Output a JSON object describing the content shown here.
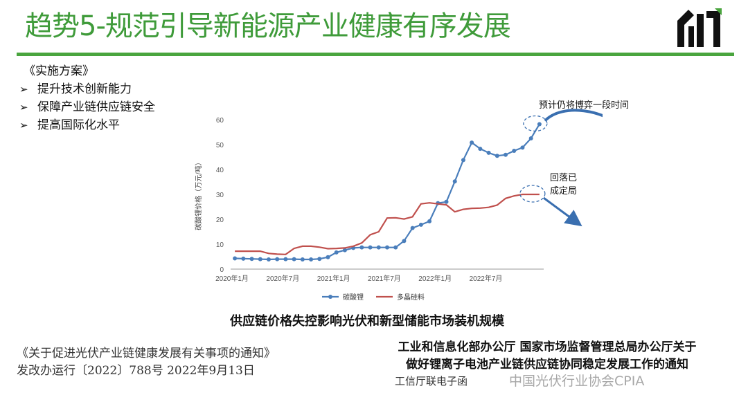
{
  "title": "趋势5-规范引导新能源产业健康有序发展",
  "plan": {
    "heading": "《实施方案》",
    "items": [
      "提升技术创新能力",
      "保障产业链供应链安全",
      "提高国际化水平"
    ]
  },
  "chart_data": {
    "type": "line",
    "ylabel": "碳酸锂价格（万元/吨）",
    "ylim": [
      0,
      60
    ],
    "yticks": [
      0,
      10,
      20,
      30,
      40,
      50,
      60
    ],
    "xticks": [
      "2020年1月",
      "2020年7月",
      "2021年1月",
      "2021年7月",
      "2022年1月",
      "2022年7月"
    ],
    "grid": false,
    "legend": "bottom",
    "series": [
      {
        "name": "碳酸锂",
        "color": "#4a7ebb",
        "marker": "circle",
        "values": [
          4.3,
          4.2,
          4.1,
          4.0,
          3.9,
          4.0,
          4.0,
          4.0,
          3.9,
          3.9,
          4.1,
          4.8,
          6.7,
          7.6,
          8.5,
          8.7,
          8.7,
          8.7,
          8.7,
          8.7,
          11.3,
          16.5,
          17.8,
          19.2,
          26.5,
          27.0,
          35.2,
          43.8,
          50.8,
          48.3,
          46.7,
          45.5,
          45.9,
          47.5,
          48.8,
          52.5,
          58.2
        ]
      },
      {
        "name": "多晶硅料",
        "color": "#c0504d",
        "marker": "none",
        "values": [
          7.2,
          7.2,
          7.2,
          7.2,
          6.3,
          6.0,
          5.9,
          8.3,
          9.2,
          9.2,
          8.8,
          8.2,
          8.3,
          8.5,
          9.2,
          10.5,
          13.8,
          15.0,
          20.5,
          20.6,
          20.1,
          21.0,
          26.2,
          26.6,
          26.2,
          25.8,
          23.0,
          24.0,
          24.4,
          24.5,
          24.8,
          25.7,
          28.4,
          29.4,
          30.0,
          30.0,
          30.0
        ]
      }
    ],
    "annotations": [
      {
        "text": "预计仍将博弈一段时间"
      },
      {
        "text": "回落已成定局"
      }
    ]
  },
  "annot_left": {
    "lines": [
      "回落已",
      "成定局"
    ]
  },
  "caption": "供应链价格失控影响光伏和新型储能市场装机规模",
  "notice1": {
    "line1": "《关于促进光伏产业链健康发展有关事项的通知》",
    "line2": "发改办运行〔2022〕788号 2022年9月13日"
  },
  "notice2": {
    "line1": "工业和信息化部办公厅 国家市场监督管理总局办公厅关于",
    "line2": "做好锂离子电池产业链供应链协同稳定发展工作的通知",
    "line3": "工信厅联电子函"
  },
  "watermark": "中国光伏行业协会CPIA",
  "colors": {
    "accent": "#4aa53e",
    "title": "#3f9b3a",
    "arrow": "#3a6fb0"
  }
}
